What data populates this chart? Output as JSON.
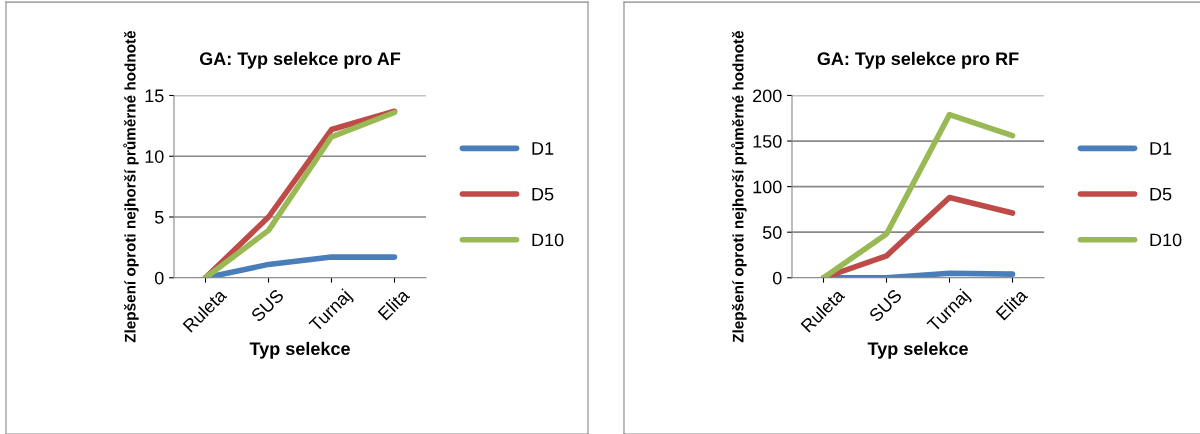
{
  "chart_data": [
    {
      "type": "line",
      "title": "GA: Typ selekce pro AF",
      "xlabel": "Typ selekce",
      "ylabel": "Zlepšení oproti nejhorší průměrné hodnotě",
      "categories": [
        "Ruleta",
        "SUS",
        "Turnaj",
        "Elita"
      ],
      "ylim": [
        0,
        15
      ],
      "yticks": [
        0,
        5,
        10,
        15
      ],
      "grid": "y",
      "legend": "right",
      "marker": "none",
      "series": [
        {
          "name": "D1",
          "color": "#4a7ebb",
          "values": [
            0,
            1.1,
            1.7,
            1.7
          ]
        },
        {
          "name": "D5",
          "color": "#be4b48",
          "values": [
            0,
            5.0,
            12.2,
            13.7
          ]
        },
        {
          "name": "D10",
          "color": "#98b954",
          "values": [
            0,
            3.9,
            11.6,
            13.6
          ]
        }
      ]
    },
    {
      "type": "line",
      "title": "GA: Typ selekce pro RF",
      "xlabel": "Typ selekce",
      "ylabel": "Zlepšení oproti nejhorší průměrné hodnotě",
      "categories": [
        "Ruleta",
        "SUS",
        "Turnaj",
        "Elita"
      ],
      "ylim": [
        0,
        200
      ],
      "yticks": [
        0,
        50,
        100,
        150,
        200
      ],
      "grid": "y",
      "legend": "right",
      "marker": "none",
      "series": [
        {
          "name": "D1",
          "color": "#4a7ebb",
          "values": [
            0,
            0,
            5,
            4
          ]
        },
        {
          "name": "D5",
          "color": "#be4b48",
          "values": [
            0,
            24,
            88,
            71
          ]
        },
        {
          "name": "D10",
          "color": "#98b954",
          "values": [
            0,
            48,
            179,
            156
          ]
        }
      ]
    }
  ]
}
